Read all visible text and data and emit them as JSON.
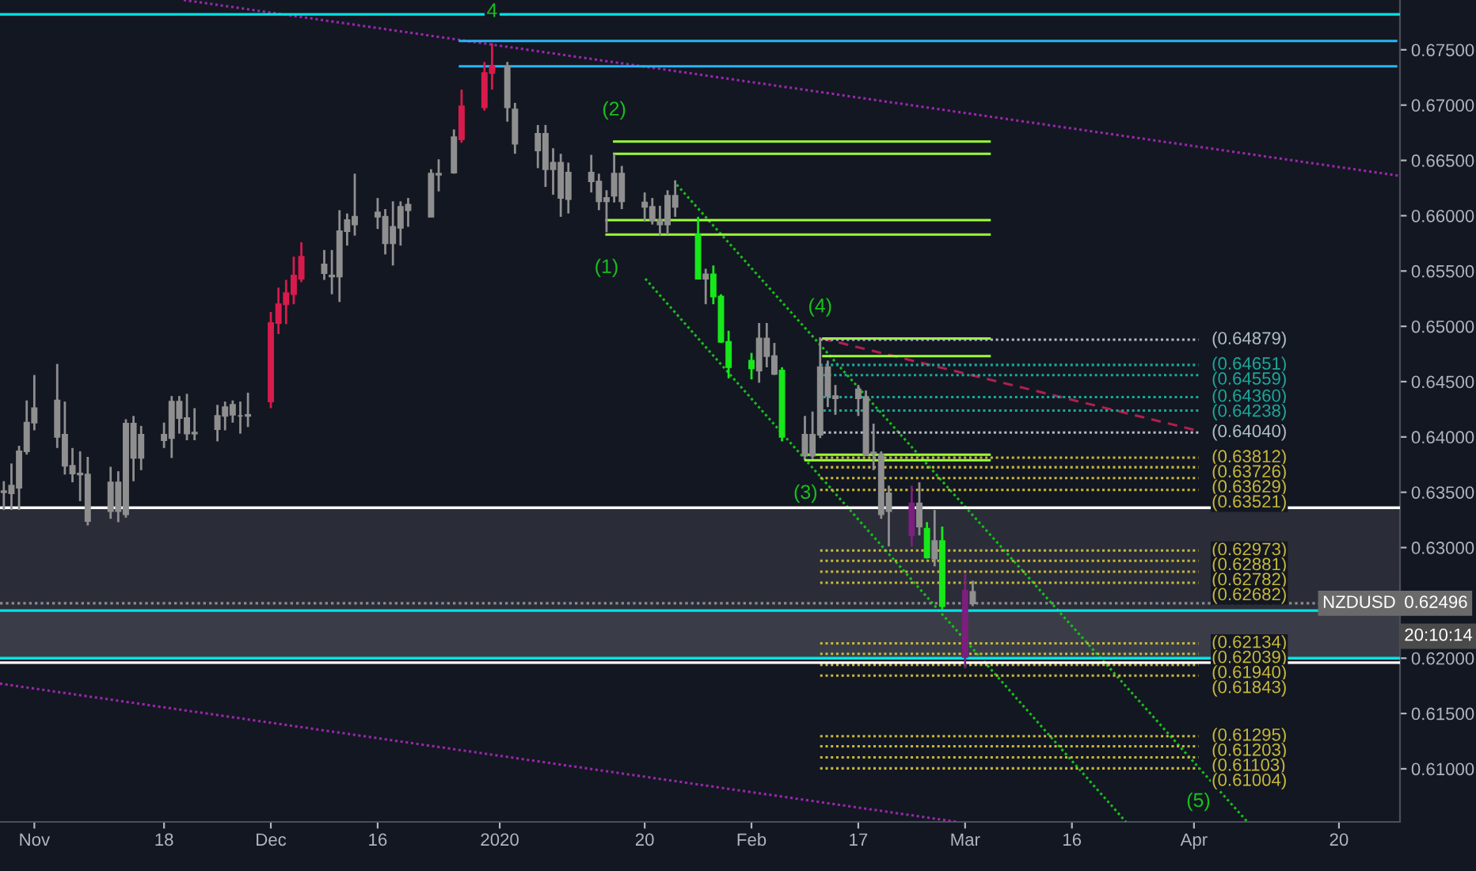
{
  "chart_data": {
    "type": "candlestick",
    "x": [
      "2019-10-28",
      "2019-10-29",
      "2019-10-30",
      "2019-10-31",
      "2019-11-01",
      "2019-11-04",
      "2019-11-05",
      "2019-11-06",
      "2019-11-07",
      "2019-11-08",
      "2019-11-11",
      "2019-11-12",
      "2019-11-13",
      "2019-11-14",
      "2019-11-15",
      "2019-11-18",
      "2019-11-19",
      "2019-11-20",
      "2019-11-21",
      "2019-11-22",
      "2019-11-25",
      "2019-11-26",
      "2019-11-27",
      "2019-11-28",
      "2019-11-29",
      "2019-12-02",
      "2019-12-03",
      "2019-12-04",
      "2019-12-05",
      "2019-12-06",
      "2019-12-09",
      "2019-12-10",
      "2019-12-11",
      "2019-12-12",
      "2019-12-13",
      "2019-12-16",
      "2019-12-17",
      "2019-12-18",
      "2019-12-19",
      "2019-12-20",
      "2019-12-23",
      "2019-12-24",
      "2019-12-26",
      "2019-12-27",
      "2019-12-30",
      "2019-12-31",
      "2020-01-02",
      "2020-01-03",
      "2020-01-06",
      "2020-01-07",
      "2020-01-08",
      "2020-01-09",
      "2020-01-10",
      "2020-01-13",
      "2020-01-14",
      "2020-01-15",
      "2020-01-16",
      "2020-01-17",
      "2020-01-20",
      "2020-01-21",
      "2020-01-22",
      "2020-01-23",
      "2020-01-24",
      "2020-01-27",
      "2020-01-28",
      "2020-01-29",
      "2020-01-30",
      "2020-01-31",
      "2020-02-03",
      "2020-02-04",
      "2020-02-05",
      "2020-02-06",
      "2020-02-07",
      "2020-02-10",
      "2020-02-11",
      "2020-02-12",
      "2020-02-13",
      "2020-02-14",
      "2020-02-17",
      "2020-02-18",
      "2020-02-19",
      "2020-02-20",
      "2020-02-21",
      "2020-02-24",
      "2020-02-25",
      "2020-02-26",
      "2020-02-27",
      "2020-02-28",
      "2020-03-02",
      "2020-03-03"
    ],
    "xlim": [
      "2019-10-27T12:00",
      "2020-04-28"
    ],
    "xticks": [
      {
        "value": "2019-11-01",
        "label": "Nov"
      },
      {
        "value": "2019-11-18",
        "label": "18"
      },
      {
        "value": "2019-12-02",
        "label": "Dec"
      },
      {
        "value": "2019-12-16",
        "label": "16"
      },
      {
        "value": "2020-01-01",
        "label": "2020"
      },
      {
        "value": "2020-01-20",
        "label": "20"
      },
      {
        "value": "2020-02-03",
        "label": "Feb"
      },
      {
        "value": "2020-02-17",
        "label": "17"
      },
      {
        "value": "2020-03-02",
        "label": "Mar"
      },
      {
        "value": "2020-03-16",
        "label": "16"
      },
      {
        "value": "2020-04-01",
        "label": "Apr"
      },
      {
        "value": "2020-04-20",
        "label": "20"
      }
    ],
    "ohlc": [
      [
        0.6351,
        0.636,
        0.6334,
        0.635
      ],
      [
        0.6356,
        0.6376,
        0.6334,
        0.6349
      ],
      [
        0.6387,
        0.6392,
        0.6334,
        0.6354
      ],
      [
        0.6413,
        0.6433,
        0.6384,
        0.6387
      ],
      [
        0.6426,
        0.6456,
        0.6406,
        0.6413
      ],
      [
        0.6433,
        0.6466,
        0.639,
        0.64
      ],
      [
        0.6402,
        0.6432,
        0.6366,
        0.6374
      ],
      [
        0.6374,
        0.639,
        0.6359,
        0.6367
      ],
      [
        0.6367,
        0.6387,
        0.6342,
        0.6366
      ],
      [
        0.6366,
        0.6382,
        0.632,
        0.6324
      ],
      [
        0.6359,
        0.6373,
        0.6326,
        0.6333
      ],
      [
        0.6359,
        0.6369,
        0.6323,
        0.6333
      ],
      [
        0.6412,
        0.6416,
        0.6327,
        0.633
      ],
      [
        0.6412,
        0.6419,
        0.636,
        0.6381
      ],
      [
        0.6402,
        0.641,
        0.637,
        0.6381
      ],
      [
        0.6402,
        0.6413,
        0.639,
        0.6397
      ],
      [
        0.6432,
        0.6437,
        0.6381,
        0.6399
      ],
      [
        0.6432,
        0.6437,
        0.6403,
        0.6417
      ],
      [
        0.6417,
        0.6439,
        0.6397,
        0.6403
      ],
      [
        0.6404,
        0.6426,
        0.6397,
        0.6403
      ],
      [
        0.6419,
        0.6429,
        0.6396,
        0.6407
      ],
      [
        0.6427,
        0.6432,
        0.6406,
        0.6419
      ],
      [
        0.6429,
        0.6433,
        0.6413,
        0.642
      ],
      [
        0.6419,
        0.6432,
        0.6403,
        0.6419
      ],
      [
        0.642,
        0.644,
        0.6409,
        0.6419
      ],
      [
        0.6432,
        0.6513,
        0.6426,
        0.6503
      ],
      [
        0.6503,
        0.6535,
        0.6493,
        0.652
      ],
      [
        0.652,
        0.6542,
        0.6502,
        0.653
      ],
      [
        0.6529,
        0.6563,
        0.652,
        0.6546
      ],
      [
        0.6543,
        0.6576,
        0.654,
        0.6563
      ],
      [
        0.6556,
        0.6569,
        0.6542,
        0.6548
      ],
      [
        0.6546,
        0.6569,
        0.6529,
        0.6545
      ],
      [
        0.6586,
        0.6605,
        0.6522,
        0.6545
      ],
      [
        0.6596,
        0.6602,
        0.6573,
        0.6586
      ],
      [
        0.6599,
        0.6638,
        0.6582,
        0.6592
      ],
      [
        0.6603,
        0.6616,
        0.6588,
        0.6599
      ],
      [
        0.6599,
        0.6606,
        0.6565,
        0.6575
      ],
      [
        0.659,
        0.6613,
        0.6555,
        0.6575
      ],
      [
        0.6608,
        0.6613,
        0.6573,
        0.6589
      ],
      [
        0.661,
        0.6616,
        0.659,
        0.6605
      ],
      [
        0.6638,
        0.6642,
        0.6599,
        0.6599
      ],
      [
        0.6638,
        0.6651,
        0.6622,
        0.6637
      ],
      [
        0.6671,
        0.6678,
        0.6638,
        0.6639
      ],
      [
        0.6669,
        0.6714,
        0.6666,
        0.6699
      ],
      [
        0.6698,
        0.6739,
        0.6695,
        0.6729
      ],
      [
        0.6729,
        0.6756,
        0.6714,
        0.6735
      ],
      [
        0.6735,
        0.6739,
        0.6685,
        0.6698
      ],
      [
        0.6696,
        0.6702,
        0.6656,
        0.6665
      ],
      [
        0.6674,
        0.6682,
        0.6643,
        0.6659
      ],
      [
        0.6674,
        0.6682,
        0.6626,
        0.6642
      ],
      [
        0.6648,
        0.6661,
        0.6619,
        0.6642
      ],
      [
        0.6648,
        0.6656,
        0.6599,
        0.6616
      ],
      [
        0.6639,
        0.6648,
        0.6602,
        0.6615
      ],
      [
        0.6639,
        0.6655,
        0.6621,
        0.6631
      ],
      [
        0.6631,
        0.6638,
        0.6605,
        0.6613
      ],
      [
        0.6616,
        0.6623,
        0.6585,
        0.6613
      ],
      [
        0.6638,
        0.6656,
        0.6612,
        0.6618
      ],
      [
        0.6638,
        0.6645,
        0.6606,
        0.6613
      ],
      [
        0.6612,
        0.6621,
        0.6595,
        0.6608
      ],
      [
        0.6608,
        0.6616,
        0.6592,
        0.6596
      ],
      [
        0.6596,
        0.6609,
        0.6582,
        0.6592
      ],
      [
        0.6618,
        0.6623,
        0.6583,
        0.6592
      ],
      [
        0.6618,
        0.6632,
        0.6599,
        0.6608
      ],
      [
        0.6583,
        0.6599,
        0.6543,
        0.6543
      ],
      [
        0.6547,
        0.6552,
        0.652,
        0.6543
      ],
      [
        0.6547,
        0.6555,
        0.652,
        0.6527
      ],
      [
        0.6527,
        0.6529,
        0.6485,
        0.6486
      ],
      [
        0.6486,
        0.6496,
        0.6453,
        0.6463
      ],
      [
        0.6469,
        0.6476,
        0.6452,
        0.6462
      ],
      [
        0.6489,
        0.6503,
        0.6449,
        0.646
      ],
      [
        0.6489,
        0.6503,
        0.6463,
        0.6473
      ],
      [
        0.6473,
        0.6485,
        0.6456,
        0.6457
      ],
      [
        0.646,
        0.6463,
        0.6396,
        0.64
      ],
      [
        0.6402,
        0.6419,
        0.638,
        0.6383
      ],
      [
        0.6402,
        0.6423,
        0.638,
        0.6383
      ],
      [
        0.6463,
        0.649,
        0.6399,
        0.6402
      ],
      [
        0.6463,
        0.6469,
        0.6427,
        0.6437
      ],
      [
        0.6437,
        0.6447,
        0.642,
        0.6435
      ],
      [
        0.6443,
        0.6447,
        0.6419,
        0.6435
      ],
      [
        0.6436,
        0.6442,
        0.6383,
        0.6384
      ],
      [
        0.6386,
        0.6412,
        0.637,
        0.6385
      ],
      [
        0.6384,
        0.6387,
        0.6326,
        0.633
      ],
      [
        0.6349,
        0.6356,
        0.6301,
        0.6333
      ],
      [
        0.634,
        0.6356,
        0.6301,
        0.6311
      ],
      [
        0.634,
        0.6359,
        0.6311,
        0.6319
      ],
      [
        0.6317,
        0.6323,
        0.629,
        0.6291
      ],
      [
        0.6306,
        0.6334,
        0.6283,
        0.629
      ],
      [
        0.6306,
        0.6319,
        0.6244,
        0.6247
      ],
      [
        0.6261,
        0.6277,
        0.6191,
        0.6201
      ],
      [
        0.626,
        0.627,
        0.6247,
        0.62496
      ]
    ],
    "colors": [
      "#8f8f8f",
      "#8f8f8f",
      "#8f8f8f",
      "#8f8f8f",
      "#8f8f8f",
      "#8f8f8f",
      "#8f8f8f",
      "#8f8f8f",
      "#8f8f8f",
      "#8f8f8f",
      "#8f8f8f",
      "#8f8f8f",
      "#8f8f8f",
      "#8f8f8f",
      "#8f8f8f",
      "#8f8f8f",
      "#8f8f8f",
      "#8f8f8f",
      "#8f8f8f",
      "#8f8f8f",
      "#8f8f8f",
      "#8f8f8f",
      "#8f8f8f",
      "#8f8f8f",
      "#8f8f8f",
      "#d81b4c",
      "#d81b4c",
      "#d81b4c",
      "#d81b4c",
      "#d81b4c",
      "#8f8f8f",
      "#8f8f8f",
      "#8f8f8f",
      "#8f8f8f",
      "#8f8f8f",
      "#8f8f8f",
      "#8f8f8f",
      "#8f8f8f",
      "#8f8f8f",
      "#8f8f8f",
      "#8f8f8f",
      "#8f8f8f",
      "#8f8f8f",
      "#d81b4c",
      "#d81b4c",
      "#d81b4c",
      "#8f8f8f",
      "#8f8f8f",
      "#8f8f8f",
      "#8f8f8f",
      "#8f8f8f",
      "#8f8f8f",
      "#8f8f8f",
      "#8f8f8f",
      "#8f8f8f",
      "#8f8f8f",
      "#8f8f8f",
      "#8f8f8f",
      "#8f8f8f",
      "#8f8f8f",
      "#8f8f8f",
      "#8f8f8f",
      "#8f8f8f",
      "#17e81a",
      "#8f8f8f",
      "#17e81a",
      "#17e81a",
      "#17e81a",
      "#17e81a",
      "#8f8f8f",
      "#8f8f8f",
      "#8f8f8f",
      "#17e81a",
      "#8f8f8f",
      "#8f8f8f",
      "#8f8f8f",
      "#8f8f8f",
      "#8f8f8f",
      "#8f8f8f",
      "#8f8f8f",
      "#8f8f8f",
      "#8f8f8f",
      "#8f8f8f",
      "#7c1f7e",
      "#8f8f8f",
      "#17e81a",
      "#8f8f8f",
      "#17e81a",
      "#7c1f7e",
      "#8f8f8f"
    ],
    "ylim": [
      0.6052,
      0.6795
    ],
    "yticks": [
      {
        "value": 0.61,
        "label": "0.61000"
      },
      {
        "value": 0.615,
        "label": "0.61500"
      },
      {
        "value": 0.62,
        "label": "0.62000"
      },
      {
        "value": 0.63,
        "label": "0.63000"
      },
      {
        "value": 0.635,
        "label": "0.63500"
      },
      {
        "value": 0.64,
        "label": "0.64000"
      },
      {
        "value": 0.645,
        "label": "0.64500"
      },
      {
        "value": 0.65,
        "label": "0.65000"
      },
      {
        "value": 0.655,
        "label": "0.65500"
      },
      {
        "value": 0.66,
        "label": "0.66000"
      },
      {
        "value": 0.665,
        "label": "0.66500"
      },
      {
        "value": 0.67,
        "label": "0.67000"
      },
      {
        "value": 0.675,
        "label": "0.67500"
      }
    ],
    "series": [
      {
        "type": "line",
        "x": [
          "2019-11-20T14:00",
          "2020-04-28"
        ],
        "values": [
          0.6795,
          0.6636
        ],
        "color": "#9c27b0",
        "line_style": "dotted"
      },
      {
        "type": "line",
        "x": [
          "2019-10-27T12:00",
          "2020-03-01"
        ],
        "values": [
          0.6177,
          0.6052
        ],
        "color": "#9c27b0",
        "line_style": "dotted"
      },
      {
        "type": "line",
        "x": [
          "2020-01-24T05:00",
          "2020-04-08"
        ],
        "values": [
          0.6628,
          0.6052
        ],
        "color": "#17c11a",
        "line_style": "dotted"
      },
      {
        "type": "line",
        "x": [
          "2020-01-20T02:00",
          "2020-03-23T02:00"
        ],
        "values": [
          0.6543,
          0.6052
        ],
        "color": "#17c11a",
        "line_style": "dotted"
      },
      {
        "type": "line",
        "x": [
          "2020-02-12T07:00",
          "2020-04-01T07:00"
        ],
        "values": [
          0.6489,
          0.6406
        ],
        "color": "#b0204c",
        "line_style": "dashed"
      },
      {
        "type": "line",
        "x": [
          "2019-12-26T19:00",
          "2020-04-27T12:00"
        ],
        "values": [
          0.6758,
          0.6758
        ],
        "color": "#29b6f6",
        "line_style": "solid"
      },
      {
        "type": "line",
        "x": [
          "2019-12-26T19:00",
          "2020-04-27T12:00"
        ],
        "values": [
          0.6735,
          0.6735
        ],
        "color": "#29b6f6",
        "line_style": "solid"
      },
      {
        "type": "line",
        "x": [
          "2020-01-16",
          "2020-03-05T05:00"
        ],
        "values": [
          0.6667,
          0.6667
        ],
        "color": "#9cff3a",
        "line_style": "solid"
      },
      {
        "type": "line",
        "x": [
          "2020-01-16",
          "2020-03-05T05:00"
        ],
        "values": [
          0.6656,
          0.6656
        ],
        "color": "#9cff3a",
        "line_style": "solid"
      },
      {
        "type": "line",
        "x": [
          "2020-01-15",
          "2020-03-05T05:00"
        ],
        "values": [
          0.6596,
          0.6596
        ],
        "color": "#9cff3a",
        "line_style": "solid"
      },
      {
        "type": "line",
        "x": [
          "2020-01-15",
          "2020-03-05T05:00"
        ],
        "values": [
          0.6583,
          0.6583
        ],
        "color": "#9cff3a",
        "line_style": "solid"
      },
      {
        "type": "line",
        "x": [
          "2020-02-12T10:00",
          "2020-03-05T05:00"
        ],
        "values": [
          0.6489,
          0.6489
        ],
        "color": "#9cff3a",
        "line_style": "solid"
      },
      {
        "type": "line",
        "x": [
          "2020-02-12T10:00",
          "2020-03-05T05:00"
        ],
        "values": [
          0.6473,
          0.6473
        ],
        "color": "#9cff3a",
        "line_style": "solid"
      },
      {
        "type": "line",
        "x": [
          "2020-02-10T02:00",
          "2020-03-05T05:00"
        ],
        "values": [
          0.6384,
          0.6384
        ],
        "color": "#9cff3a",
        "line_style": "solid"
      },
      {
        "type": "line",
        "x": [
          "2020-02-10T02:00",
          "2020-03-05T05:00"
        ],
        "values": [
          0.6379,
          0.6379
        ],
        "color": "#9cff3a",
        "line_style": "solid"
      },
      {
        "type": "line",
        "name": "(0.64879)",
        "x": [
          "2020-02-12",
          "2020-04-01T14:00"
        ],
        "values": [
          0.64879,
          0.64879
        ],
        "color": "#b0bec5",
        "line_style": "dotted"
      },
      {
        "type": "line",
        "name": "(0.64651)",
        "x": [
          "2020-02-12",
          "2020-04-01T14:00"
        ],
        "values": [
          0.64651,
          0.64651
        ],
        "color": "#1aa89a",
        "line_style": "dotted"
      },
      {
        "type": "line",
        "name": "(0.64559)",
        "x": [
          "2020-02-12T10:00",
          "2020-04-01T14:00"
        ],
        "values": [
          0.64559,
          0.64559
        ],
        "color": "#1aa89a",
        "line_style": "dotted"
      },
      {
        "type": "line",
        "name": "(0.64360)",
        "x": [
          "2020-02-12T10:00",
          "2020-04-01T14:00"
        ],
        "values": [
          0.6436,
          0.6436
        ],
        "color": "#1aa89a",
        "line_style": "dotted"
      },
      {
        "type": "line",
        "name": "(0.64238)",
        "x": [
          "2020-02-12T10:00",
          "2020-04-01T14:00"
        ],
        "values": [
          0.64238,
          0.64238
        ],
        "color": "#1aa89a",
        "line_style": "dotted"
      },
      {
        "type": "line",
        "name": "(0.64040)",
        "x": [
          "2020-02-12T10:00",
          "2020-04-01T14:00"
        ],
        "values": [
          0.6404,
          0.6404
        ],
        "color": "#b0bec5",
        "line_style": "dotted"
      },
      {
        "type": "line",
        "name": "(0.63812)",
        "x": [
          "2020-02-12",
          "2020-04-01T14:00"
        ],
        "values": [
          0.63812,
          0.63812
        ],
        "color": "#c8b83a",
        "line_style": "dotted"
      },
      {
        "type": "line",
        "name": "(0.63726)",
        "x": [
          "2020-02-12",
          "2020-04-01T14:00"
        ],
        "values": [
          0.63726,
          0.63726
        ],
        "color": "#c8b83a",
        "line_style": "dotted"
      },
      {
        "type": "line",
        "name": "(0.63629)",
        "x": [
          "2020-02-12",
          "2020-04-01T14:00"
        ],
        "values": [
          0.63629,
          0.63629
        ],
        "color": "#c8b83a",
        "line_style": "dotted"
      },
      {
        "type": "line",
        "name": "(0.63521)",
        "x": [
          "2020-02-12",
          "2020-04-01T14:00"
        ],
        "values": [
          0.63521,
          0.63521
        ],
        "color": "#c8b83a",
        "line_style": "dotted"
      },
      {
        "type": "line",
        "name": "(0.62973)",
        "x": [
          "2020-02-12",
          "2020-04-01T14:00"
        ],
        "values": [
          0.62973,
          0.62973
        ],
        "color": "#c8b83a",
        "line_style": "dotted"
      },
      {
        "type": "line",
        "name": "(0.62881)",
        "x": [
          "2020-02-12",
          "2020-04-01T14:00"
        ],
        "values": [
          0.62881,
          0.62881
        ],
        "color": "#c8b83a",
        "line_style": "dotted"
      },
      {
        "type": "line",
        "name": "(0.62782)",
        "x": [
          "2020-02-12",
          "2020-04-01T14:00"
        ],
        "values": [
          0.62782,
          0.62782
        ],
        "color": "#c8b83a",
        "line_style": "dotted"
      },
      {
        "type": "line",
        "name": "(0.62682)",
        "x": [
          "2020-02-12",
          "2020-04-01T14:00"
        ],
        "values": [
          0.62682,
          0.62682
        ],
        "color": "#c8b83a",
        "line_style": "dotted"
      },
      {
        "type": "line",
        "name": "(0.62134)",
        "x": [
          "2020-02-12",
          "2020-04-01T14:00"
        ],
        "values": [
          0.62134,
          0.62134
        ],
        "color": "#c8b83a",
        "line_style": "dotted"
      },
      {
        "type": "line",
        "name": "(0.62039)",
        "x": [
          "2020-02-12",
          "2020-04-01T14:00"
        ],
        "values": [
          0.62039,
          0.62039
        ],
        "color": "#c8b83a",
        "line_style": "dotted"
      },
      {
        "type": "line",
        "name": "(0.61940)",
        "x": [
          "2020-02-12",
          "2020-04-01T14:00"
        ],
        "values": [
          0.6194,
          0.6194
        ],
        "color": "#c8b83a",
        "line_style": "dotted"
      },
      {
        "type": "line",
        "name": "(0.61843)",
        "x": [
          "2020-02-12",
          "2020-04-01T14:00"
        ],
        "values": [
          0.61843,
          0.61843
        ],
        "color": "#c8b83a",
        "line_style": "dotted"
      },
      {
        "type": "line",
        "name": "(0.61295)",
        "x": [
          "2020-02-12",
          "2020-04-01T14:00"
        ],
        "values": [
          0.61295,
          0.61295
        ],
        "color": "#c8b83a",
        "line_style": "dotted"
      },
      {
        "type": "line",
        "name": "(0.61203)",
        "x": [
          "2020-02-12",
          "2020-04-01T14:00"
        ],
        "values": [
          0.61203,
          0.61203
        ],
        "color": "#c8b83a",
        "line_style": "dotted"
      },
      {
        "type": "line",
        "name": "(0.61103)",
        "x": [
          "2020-02-12",
          "2020-04-01T14:00"
        ],
        "values": [
          0.61103,
          0.61103
        ],
        "color": "#c8b83a",
        "line_style": "dotted"
      },
      {
        "type": "line",
        "name": "(0.61004)",
        "x": [
          "2020-02-12",
          "2020-04-01T14:00"
        ],
        "values": [
          0.61004,
          0.61004
        ],
        "color": "#c8b83a",
        "line_style": "dotted"
      }
    ],
    "bands": [
      {
        "axis": "y",
        "from": 0.6243,
        "to": 0.6336,
        "color": "#2a2d38"
      },
      {
        "axis": "y",
        "from": 0.62,
        "to": 0.6243,
        "color": "#3a3d48"
      }
    ],
    "ref_lines": [
      {
        "axis": "y",
        "value": 0.6782,
        "color": "#00e5e5",
        "line_style": "solid"
      },
      {
        "axis": "y",
        "value": 0.6336,
        "color": "#ffffff",
        "line_style": "solid"
      },
      {
        "axis": "y",
        "value": 0.6243,
        "color": "#00e5e5",
        "line_style": "solid"
      },
      {
        "axis": "y",
        "value": 0.62,
        "color": "#00e5e5",
        "line_style": "solid"
      },
      {
        "axis": "y",
        "value": 0.6196,
        "color": "#ffffff",
        "line_style": "solid"
      },
      {
        "axis": "y",
        "value": 0.62496,
        "label": "0.62496",
        "color": "#8a8a8a",
        "line_style": "dotted"
      }
    ],
    "annotations": [
      {
        "text": "4",
        "x": "2019-12-31",
        "y": 0.6756
      },
      {
        "text": "(2)",
        "x": "2020-01-16",
        "y": 0.6667
      },
      {
        "text": "(1)",
        "x": "2020-01-15",
        "y": 0.6583
      },
      {
        "text": "(4)",
        "x": "2020-02-12",
        "y": 0.6489
      },
      {
        "text": "(3)",
        "x": "2020-02-10T02:00",
        "y": 0.6379
      },
      {
        "text": "(5)",
        "x": "2020-04-01T14:00",
        "y": 0.61004
      },
      "NZDUSD",
      "20:10:14"
    ],
    "grid": false,
    "legend": false
  }
}
